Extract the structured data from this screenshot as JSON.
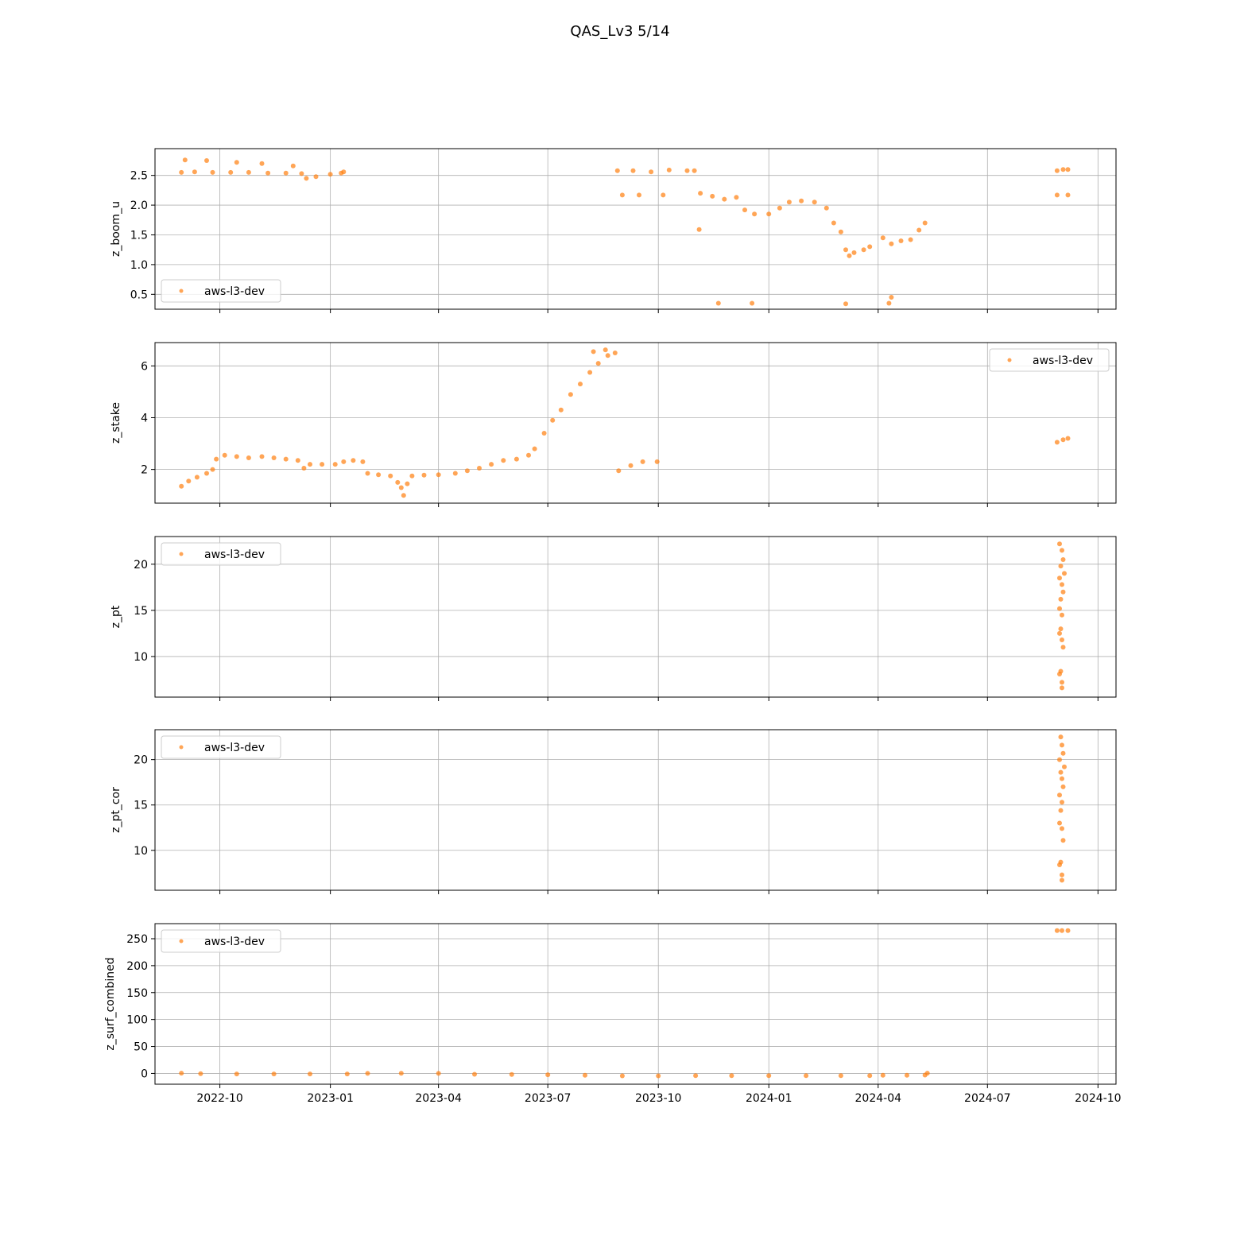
{
  "figure": {
    "title": "QAS_Lv3 5/14",
    "x_ticks": [
      "2022-10",
      "2023-01",
      "2023-04",
      "2023-07",
      "2023-10",
      "2024-01",
      "2024-04",
      "2024-07",
      "2024-10"
    ],
    "xlim": [
      "2022-08-08",
      "2024-10-16"
    ],
    "point_color": "#ff7f0e",
    "point_opacity": 0.7
  },
  "chart_data": [
    {
      "type": "scatter",
      "ylabel": "z_boom_u",
      "ylim": [
        0.25,
        2.95
      ],
      "yticks": [
        "0.5",
        "1.0",
        "1.5",
        "2.0",
        "2.5"
      ],
      "grid": true,
      "legend": "lower-left",
      "series": [
        {
          "name": "aws-l3-dev",
          "points": [
            [
              "2022-08-30",
              2.55
            ],
            [
              "2022-09-10",
              2.56
            ],
            [
              "2022-09-25",
              2.55
            ],
            [
              "2022-10-10",
              2.55
            ],
            [
              "2022-10-25",
              2.55
            ],
            [
              "2022-11-10",
              2.54
            ],
            [
              "2022-11-25",
              2.54
            ],
            [
              "2022-12-08",
              2.53
            ],
            [
              "2022-12-12",
              2.45
            ],
            [
              "2022-12-20",
              2.48
            ],
            [
              "2023-01-01",
              2.52
            ],
            [
              "2023-01-10",
              2.54
            ],
            [
              "2023-01-12",
              2.56
            ],
            [
              "2022-09-02",
              2.76
            ],
            [
              "2022-09-20",
              2.75
            ],
            [
              "2022-10-15",
              2.72
            ],
            [
              "2022-11-05",
              2.7
            ],
            [
              "2022-12-01",
              2.66
            ],
            [
              "2023-08-28",
              2.58
            ],
            [
              "2023-09-10",
              2.58
            ],
            [
              "2023-09-25",
              2.56
            ],
            [
              "2023-10-10",
              2.59
            ],
            [
              "2023-10-25",
              2.58
            ],
            [
              "2023-10-31",
              2.58
            ],
            [
              "2023-09-01",
              2.17
            ],
            [
              "2023-09-15",
              2.17
            ],
            [
              "2023-10-05",
              2.17
            ],
            [
              "2023-11-05",
              2.2
            ],
            [
              "2023-11-15",
              2.15
            ],
            [
              "2023-11-25",
              2.1
            ],
            [
              "2023-12-05",
              2.13
            ],
            [
              "2023-12-12",
              1.92
            ],
            [
              "2023-12-20",
              1.85
            ],
            [
              "2024-01-01",
              1.85
            ],
            [
              "2024-01-10",
              1.95
            ],
            [
              "2024-01-18",
              2.05
            ],
            [
              "2024-01-28",
              2.07
            ],
            [
              "2024-02-08",
              2.05
            ],
            [
              "2024-02-18",
              1.95
            ],
            [
              "2024-02-24",
              1.7
            ],
            [
              "2024-03-01",
              1.55
            ],
            [
              "2024-03-05",
              1.25
            ],
            [
              "2024-03-08",
              1.15
            ],
            [
              "2024-03-12",
              1.2
            ],
            [
              "2024-03-20",
              1.25
            ],
            [
              "2024-03-25",
              1.3
            ],
            [
              "2023-11-04",
              1.59
            ],
            [
              "2023-11-20",
              0.35
            ],
            [
              "2023-12-18",
              0.35
            ],
            [
              "2024-03-05",
              0.34
            ],
            [
              "2024-04-10",
              0.35
            ],
            [
              "2024-04-12",
              0.45
            ],
            [
              "2024-04-05",
              1.45
            ],
            [
              "2024-04-12",
              1.35
            ],
            [
              "2024-04-20",
              1.4
            ],
            [
              "2024-04-28",
              1.42
            ],
            [
              "2024-05-05",
              1.58
            ],
            [
              "2024-05-10",
              1.7
            ],
            [
              "2024-08-28",
              2.58
            ],
            [
              "2024-09-02",
              2.6
            ],
            [
              "2024-09-06",
              2.6
            ],
            [
              "2024-08-28",
              2.17
            ],
            [
              "2024-09-06",
              2.17
            ]
          ]
        }
      ]
    },
    {
      "type": "scatter",
      "ylabel": "z_stake",
      "ylim": [
        0.7,
        6.9
      ],
      "yticks": [
        "2",
        "4",
        "6"
      ],
      "grid": true,
      "legend": "upper-right",
      "series": [
        {
          "name": "aws-l3-dev",
          "points": [
            [
              "2022-08-30",
              1.35
            ],
            [
              "2022-09-05",
              1.55
            ],
            [
              "2022-09-12",
              1.7
            ],
            [
              "2022-09-20",
              1.85
            ],
            [
              "2022-09-25",
              2.0
            ],
            [
              "2022-09-28",
              2.4
            ],
            [
              "2022-10-05",
              2.55
            ],
            [
              "2022-10-15",
              2.5
            ],
            [
              "2022-10-25",
              2.45
            ],
            [
              "2022-11-05",
              2.5
            ],
            [
              "2022-11-15",
              2.45
            ],
            [
              "2022-11-25",
              2.4
            ],
            [
              "2022-12-05",
              2.35
            ],
            [
              "2022-12-10",
              2.05
            ],
            [
              "2022-12-15",
              2.2
            ],
            [
              "2022-12-25",
              2.2
            ],
            [
              "2023-01-05",
              2.2
            ],
            [
              "2023-01-12",
              2.3
            ],
            [
              "2023-01-20",
              2.35
            ],
            [
              "2023-01-28",
              2.3
            ],
            [
              "2023-02-01",
              1.85
            ],
            [
              "2023-02-10",
              1.8
            ],
            [
              "2023-02-20",
              1.75
            ],
            [
              "2023-02-26",
              1.5
            ],
            [
              "2023-03-01",
              1.3
            ],
            [
              "2023-03-03",
              1.0
            ],
            [
              "2023-03-06",
              1.45
            ],
            [
              "2023-03-10",
              1.75
            ],
            [
              "2023-03-20",
              1.78
            ],
            [
              "2023-04-01",
              1.8
            ],
            [
              "2023-04-15",
              1.85
            ],
            [
              "2023-04-25",
              1.95
            ],
            [
              "2023-05-05",
              2.05
            ],
            [
              "2023-05-15",
              2.2
            ],
            [
              "2023-05-25",
              2.35
            ],
            [
              "2023-06-05",
              2.4
            ],
            [
              "2023-06-15",
              2.55
            ],
            [
              "2023-06-20",
              2.8
            ],
            [
              "2023-06-28",
              3.4
            ],
            [
              "2023-07-05",
              3.9
            ],
            [
              "2023-07-12",
              4.3
            ],
            [
              "2023-07-20",
              4.9
            ],
            [
              "2023-07-28",
              5.3
            ],
            [
              "2023-08-05",
              5.75
            ],
            [
              "2023-08-12",
              6.1
            ],
            [
              "2023-08-20",
              6.4
            ],
            [
              "2023-08-26",
              6.5
            ],
            [
              "2023-08-08",
              6.55
            ],
            [
              "2023-08-18",
              6.62
            ],
            [
              "2023-08-29",
              1.95
            ],
            [
              "2023-09-08",
              2.15
            ],
            [
              "2023-09-18",
              2.3
            ],
            [
              "2023-09-30",
              2.3
            ],
            [
              "2024-08-28",
              3.05
            ],
            [
              "2024-09-02",
              3.15
            ],
            [
              "2024-09-06",
              3.2
            ]
          ]
        }
      ]
    },
    {
      "type": "scatter",
      "ylabel": "z_pt",
      "ylim": [
        5.6,
        23.0
      ],
      "yticks": [
        "10",
        "15",
        "20"
      ],
      "grid": true,
      "legend": "upper-left",
      "series": [
        {
          "name": "aws-l3-dev",
          "points": [
            [
              "2024-08-30",
              22.2
            ],
            [
              "2024-09-01",
              21.5
            ],
            [
              "2024-09-02",
              20.5
            ],
            [
              "2024-08-31",
              19.8
            ],
            [
              "2024-09-03",
              19.0
            ],
            [
              "2024-08-30",
              18.5
            ],
            [
              "2024-09-01",
              17.8
            ],
            [
              "2024-09-02",
              17.0
            ],
            [
              "2024-08-31",
              16.2
            ],
            [
              "2024-08-30",
              15.2
            ],
            [
              "2024-09-01",
              14.5
            ],
            [
              "2024-08-31",
              13.0
            ],
            [
              "2024-08-30",
              12.5
            ],
            [
              "2024-09-01",
              11.8
            ],
            [
              "2024-09-02",
              11.0
            ],
            [
              "2024-08-31",
              8.4
            ],
            [
              "2024-08-30",
              8.1
            ],
            [
              "2024-09-01",
              7.2
            ],
            [
              "2024-09-01",
              6.6
            ]
          ]
        }
      ]
    },
    {
      "type": "scatter",
      "ylabel": "z_pt_cor",
      "ylim": [
        5.6,
        23.3
      ],
      "yticks": [
        "10",
        "15",
        "20"
      ],
      "grid": true,
      "legend": "upper-left",
      "series": [
        {
          "name": "aws-l3-dev",
          "points": [
            [
              "2024-08-31",
              22.5
            ],
            [
              "2024-09-01",
              21.6
            ],
            [
              "2024-09-02",
              20.7
            ],
            [
              "2024-08-30",
              20.0
            ],
            [
              "2024-09-03",
              19.2
            ],
            [
              "2024-08-31",
              18.6
            ],
            [
              "2024-09-01",
              17.9
            ],
            [
              "2024-09-02",
              17.0
            ],
            [
              "2024-08-30",
              16.1
            ],
            [
              "2024-09-01",
              15.3
            ],
            [
              "2024-08-31",
              14.4
            ],
            [
              "2024-08-30",
              13.0
            ],
            [
              "2024-09-01",
              12.4
            ],
            [
              "2024-09-02",
              11.1
            ],
            [
              "2024-08-31",
              8.7
            ],
            [
              "2024-08-30",
              8.4
            ],
            [
              "2024-09-01",
              7.3
            ],
            [
              "2024-09-01",
              6.7
            ]
          ]
        }
      ]
    },
    {
      "type": "scatter",
      "ylabel": "z_surf_combined",
      "ylim": [
        -20,
        278
      ],
      "yticks": [
        "0",
        "50",
        "100",
        "150",
        "200",
        "250"
      ],
      "grid": true,
      "legend": "upper-left",
      "series": [
        {
          "name": "aws-l3-dev",
          "points": [
            [
              "2022-08-30",
              0.5
            ],
            [
              "2022-09-15",
              -0.5
            ],
            [
              "2022-10-15",
              -1.0
            ],
            [
              "2022-11-15",
              -1.0
            ],
            [
              "2022-12-15",
              -1.0
            ],
            [
              "2023-01-15",
              -1.0
            ],
            [
              "2023-02-01",
              0.0
            ],
            [
              "2023-03-01",
              0.3
            ],
            [
              "2023-04-01",
              0.0
            ],
            [
              "2023-05-01",
              -1.5
            ],
            [
              "2023-06-01",
              -2.0
            ],
            [
              "2023-07-01",
              -2.5
            ],
            [
              "2023-08-01",
              -3.5
            ],
            [
              "2023-09-01",
              -4.5
            ],
            [
              "2023-10-01",
              -4.5
            ],
            [
              "2023-11-01",
              -4.0
            ],
            [
              "2023-12-01",
              -4.0
            ],
            [
              "2024-01-01",
              -4.0
            ],
            [
              "2024-02-01",
              -4.0
            ],
            [
              "2024-03-01",
              -4.0
            ],
            [
              "2024-03-25",
              -4.0
            ],
            [
              "2024-04-05",
              -3.5
            ],
            [
              "2024-04-25",
              -3.5
            ],
            [
              "2024-05-10",
              -3.0
            ],
            [
              "2024-05-12",
              0.5
            ],
            [
              "2024-08-28",
              265.0
            ],
            [
              "2024-09-01",
              265.0
            ],
            [
              "2024-09-06",
              265.0
            ]
          ]
        }
      ]
    }
  ]
}
